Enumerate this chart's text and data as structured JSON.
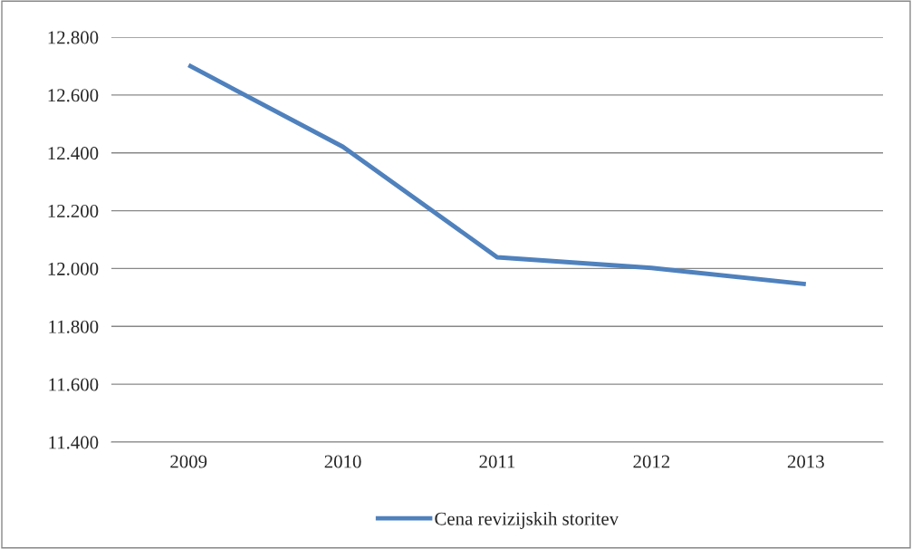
{
  "chart_data": {
    "type": "line",
    "categories": [
      "2009",
      "2010",
      "2011",
      "2012",
      "2013"
    ],
    "series": [
      {
        "name": "Cena revizijskih storitev",
        "color": "#4f81bd",
        "values": [
          12703,
          12421,
          12039,
          12002,
          11946
        ]
      }
    ],
    "ylim": [
      11400,
      12800
    ],
    "yticks": [
      {
        "value": 11400,
        "label": "11.400"
      },
      {
        "value": 11600,
        "label": "11.600"
      },
      {
        "value": 11800,
        "label": "11.800"
      },
      {
        "value": 12000,
        "label": "12.000"
      },
      {
        "value": 12200,
        "label": "12.200"
      },
      {
        "value": 12400,
        "label": "12.400"
      },
      {
        "value": 12600,
        "label": "12.600"
      },
      {
        "value": 12800,
        "label": "12.800"
      }
    ],
    "grid": "y",
    "legend": "bottom",
    "marker": "none",
    "line_style": "solid"
  }
}
